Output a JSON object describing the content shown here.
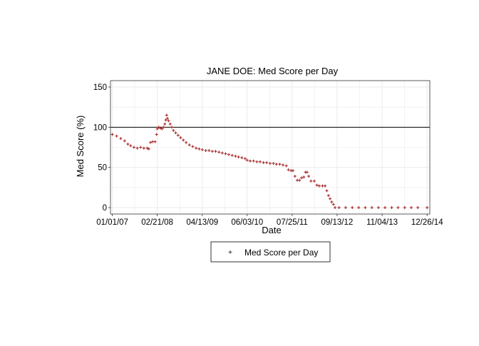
{
  "chart_data": {
    "type": "scatter",
    "title": "JANE DOE: Med Score per Day",
    "xlabel": "Date",
    "ylabel": "Med Score (%)",
    "x_axis_type": "date",
    "xlim": [
      "2006-12-15",
      "2015-01-20"
    ],
    "ylim": [
      -8,
      158
    ],
    "x_ticks": [
      "2007-01-01",
      "2008-02-21",
      "2009-04-13",
      "2010-06-03",
      "2011-07-25",
      "2012-09-13",
      "2013-11-04",
      "2014-12-26"
    ],
    "x_tick_labels": [
      "01/01/07",
      "02/21/08",
      "04/13/09",
      "06/03/10",
      "07/25/11",
      "09/13/12",
      "11/04/13",
      "12/26/14"
    ],
    "y_ticks": [
      0,
      50,
      100,
      150
    ],
    "y_tick_labels": [
      "0",
      "50",
      "100",
      "150"
    ],
    "reference_line": {
      "y": 100,
      "color": "#000000"
    },
    "grid": true,
    "legend": {
      "position": "bottom-center",
      "entries": [
        "Med Score per Day"
      ]
    },
    "colors": {
      "series": "#a52a2a",
      "grid": "#ebebeb",
      "panel_border": "#333333"
    },
    "series": [
      {
        "name": "Med Score per Day",
        "points": [
          [
            "2007-01-01",
            91
          ],
          [
            "2007-02-10",
            89
          ],
          [
            "2007-03-20",
            86
          ],
          [
            "2007-04-25",
            83
          ],
          [
            "2007-05-25",
            79
          ],
          [
            "2007-06-20",
            77
          ],
          [
            "2007-07-20",
            75
          ],
          [
            "2007-08-20",
            74
          ],
          [
            "2007-09-20",
            75
          ],
          [
            "2007-10-20",
            74
          ],
          [
            "2007-11-20",
            74
          ],
          [
            "2007-12-05",
            73
          ],
          [
            "2007-12-20",
            81
          ],
          [
            "2008-01-10",
            82
          ],
          [
            "2008-02-01",
            82
          ],
          [
            "2008-02-15",
            91
          ],
          [
            "2008-02-21",
            98
          ],
          [
            "2008-03-05",
            100
          ],
          [
            "2008-03-20",
            99
          ],
          [
            "2008-04-05",
            98
          ],
          [
            "2008-04-20",
            100
          ],
          [
            "2008-05-01",
            104
          ],
          [
            "2008-05-10",
            109
          ],
          [
            "2008-05-18",
            115
          ],
          [
            "2008-05-25",
            111
          ],
          [
            "2008-06-05",
            108
          ],
          [
            "2008-06-20",
            104
          ],
          [
            "2008-07-05",
            100
          ],
          [
            "2008-07-20",
            96
          ],
          [
            "2008-08-10",
            93
          ],
          [
            "2008-09-01",
            90
          ],
          [
            "2008-09-25",
            87
          ],
          [
            "2008-10-20",
            84
          ],
          [
            "2008-11-15",
            81
          ],
          [
            "2008-12-15",
            78
          ],
          [
            "2009-01-15",
            76
          ],
          [
            "2009-02-15",
            74
          ],
          [
            "2009-03-15",
            73
          ],
          [
            "2009-04-13",
            72
          ],
          [
            "2009-05-15",
            71
          ],
          [
            "2009-06-15",
            71
          ],
          [
            "2009-07-15",
            70
          ],
          [
            "2009-08-15",
            70
          ],
          [
            "2009-09-15",
            69
          ],
          [
            "2009-10-15",
            68
          ],
          [
            "2009-11-15",
            67
          ],
          [
            "2009-12-15",
            66
          ],
          [
            "2010-01-15",
            65
          ],
          [
            "2010-02-15",
            64
          ],
          [
            "2010-03-15",
            63
          ],
          [
            "2010-04-15",
            62
          ],
          [
            "2010-05-15",
            61
          ],
          [
            "2010-06-03",
            59
          ],
          [
            "2010-07-01",
            58
          ],
          [
            "2010-08-01",
            58
          ],
          [
            "2010-09-01",
            57
          ],
          [
            "2010-10-01",
            57
          ],
          [
            "2010-11-01",
            56
          ],
          [
            "2010-12-01",
            56
          ],
          [
            "2011-01-01",
            55
          ],
          [
            "2011-02-01",
            55
          ],
          [
            "2011-03-01",
            54
          ],
          [
            "2011-04-01",
            54
          ],
          [
            "2011-05-01",
            53
          ],
          [
            "2011-06-01",
            52
          ],
          [
            "2011-06-20",
            47
          ],
          [
            "2011-07-15",
            46
          ],
          [
            "2011-08-01",
            46
          ],
          [
            "2011-08-20",
            39
          ],
          [
            "2011-09-10",
            34
          ],
          [
            "2011-10-01",
            34
          ],
          [
            "2011-10-20",
            37
          ],
          [
            "2011-11-10",
            38
          ],
          [
            "2011-11-25",
            44
          ],
          [
            "2011-12-10",
            44
          ],
          [
            "2011-12-25",
            39
          ],
          [
            "2012-01-15",
            33
          ],
          [
            "2012-02-15",
            33
          ],
          [
            "2012-03-10",
            28
          ],
          [
            "2012-04-01",
            27
          ],
          [
            "2012-05-01",
            27
          ],
          [
            "2012-05-25",
            27
          ],
          [
            "2012-06-10",
            21
          ],
          [
            "2012-06-25",
            15
          ],
          [
            "2012-07-10",
            11
          ],
          [
            "2012-07-25",
            7
          ],
          [
            "2012-08-10",
            4
          ],
          [
            "2012-08-25",
            0
          ],
          [
            "2012-10-01",
            0
          ],
          [
            "2012-12-01",
            0
          ],
          [
            "2013-02-01",
            0
          ],
          [
            "2013-04-01",
            0
          ],
          [
            "2013-06-01",
            0
          ],
          [
            "2013-08-01",
            0
          ],
          [
            "2013-10-01",
            0
          ],
          [
            "2013-12-01",
            0
          ],
          [
            "2014-02-01",
            0
          ],
          [
            "2014-04-01",
            0
          ],
          [
            "2014-06-01",
            0
          ],
          [
            "2014-08-01",
            0
          ],
          [
            "2014-10-01",
            0
          ],
          [
            "2014-12-26",
            0
          ]
        ]
      }
    ]
  }
}
